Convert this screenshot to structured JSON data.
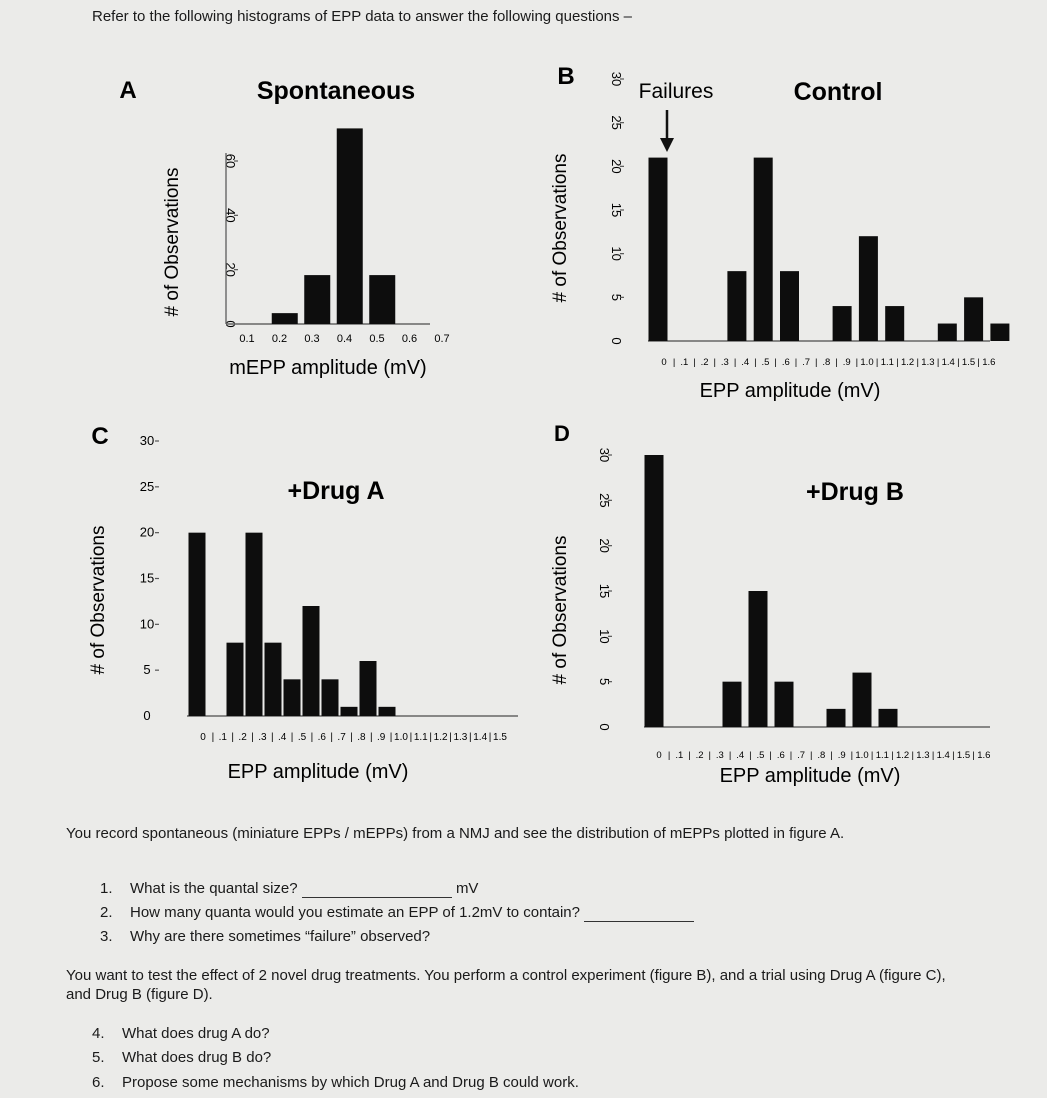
{
  "page": {
    "intro": "Refer to the following histograms of EPP data to answer the following questions –"
  },
  "chart_data": [
    {
      "id": "A",
      "panel_letter": "A",
      "type": "bar",
      "title": "Spontaneous",
      "xlabel": "mEPP amplitude (mV)",
      "ylabel": "# of Observations",
      "x_ticks": [
        "0.1",
        "0.2",
        "0.3",
        "0.4",
        "0.5",
        "0.6",
        "0.7"
      ],
      "y_ticks": [
        "0",
        "20",
        "40",
        "60"
      ],
      "ylim": [
        0,
        80
      ],
      "categories": [
        "0.2",
        "0.3",
        "0.4",
        "0.5"
      ],
      "values": [
        4,
        18,
        72,
        18
      ],
      "x": [
        0.2,
        0.3,
        0.4,
        0.5
      ]
    },
    {
      "id": "B",
      "panel_letter": "B",
      "type": "bar",
      "title": "Control",
      "annotation": "Failures",
      "xlabel": "EPP amplitude (mV)",
      "ylabel": "# of Observations",
      "x_ticks": [
        "0",
        ".1",
        ".2",
        ".3",
        ".4",
        ".5",
        ".6",
        ".7",
        ".8",
        ".9",
        "1.0",
        "1.1",
        "1.2",
        "1.3",
        "1.4",
        "1.5",
        "1.6"
      ],
      "y_ticks": [
        "0",
        "5",
        "10",
        "15",
        "20",
        "25",
        "30"
      ],
      "ylim": [
        0,
        30
      ],
      "categories": [
        "0",
        ".3",
        ".4",
        ".5",
        ".7",
        ".8",
        ".9",
        "1.1",
        "1.2",
        "1.3"
      ],
      "values": [
        21,
        8,
        21,
        8,
        4,
        12,
        4,
        2,
        5,
        2
      ],
      "x": [
        0.0,
        0.3,
        0.4,
        0.5,
        0.7,
        0.8,
        0.9,
        1.1,
        1.2,
        1.3
      ]
    },
    {
      "id": "C",
      "panel_letter": "C",
      "type": "bar",
      "title": "+Drug A",
      "xlabel": "EPP amplitude (mV)",
      "ylabel": "# of Observations",
      "x_ticks": [
        "0",
        ".1",
        ".2",
        ".3",
        ".4",
        ".5",
        ".6",
        ".7",
        ".8",
        ".9",
        "1.0",
        "1.1",
        "1.2",
        "1.3",
        "1.4",
        "1.5"
      ],
      "y_ticks": [
        "0",
        "5",
        "10",
        "15",
        "20",
        "25",
        "30"
      ],
      "ylim": [
        0,
        30
      ],
      "categories": [
        "0",
        ".2",
        ".3",
        ".4",
        ".5",
        ".6",
        ".7",
        ".8",
        ".9",
        "1.0"
      ],
      "values": [
        20,
        8,
        20,
        8,
        4,
        12,
        4,
        1,
        6,
        1
      ],
      "x": [
        0.0,
        0.2,
        0.3,
        0.4,
        0.5,
        0.6,
        0.7,
        0.8,
        0.9,
        1.0
      ]
    },
    {
      "id": "D",
      "panel_letter": "D",
      "type": "bar",
      "title": "+Drug B",
      "xlabel": "EPP amplitude (mV)",
      "ylabel": "# of Observations",
      "x_ticks": [
        "0",
        ".1",
        ".2",
        ".3",
        ".4",
        ".5",
        ".6",
        ".7",
        ".8",
        ".9",
        "1.0",
        "1.1",
        "1.2",
        "1.3",
        "1.4",
        "1.5",
        "1.6"
      ],
      "y_ticks": [
        "0",
        "5",
        "10",
        "15",
        "20",
        "25",
        "30"
      ],
      "ylim": [
        0,
        30
      ],
      "categories": [
        "0",
        ".3",
        ".4",
        ".5",
        ".7",
        ".8",
        ".9"
      ],
      "values": [
        30,
        5,
        15,
        5,
        2,
        6,
        2
      ],
      "x": [
        0.0,
        0.3,
        0.4,
        0.5,
        0.7,
        0.8,
        0.9
      ]
    }
  ],
  "questions": {
    "para1": "You record spontaneous (miniature EPPs / mEPPs) from a NMJ and see the distribution of mEPPs plotted in figure A.",
    "q1_num": "1.",
    "q1": "What is the quantal size?",
    "q1_unit": "mV",
    "q2_num": "2.",
    "q2": "How many quanta would you estimate an EPP of 1.2mV to contain?",
    "q3_num": "3.",
    "q3": "Why are there sometimes “failure” observed?",
    "para2": "You want to test the effect of 2 novel drug treatments. You perform a control experiment (figure B), and a trial using Drug A (figure C), and Drug B (figure D).",
    "q4_num": "4.",
    "q4": "What does drug A do?",
    "q5_num": "5.",
    "q5": "What does drug B do?",
    "q6_num": "6.",
    "q6": "Propose some mechanisms by which Drug A and Drug B could work."
  }
}
